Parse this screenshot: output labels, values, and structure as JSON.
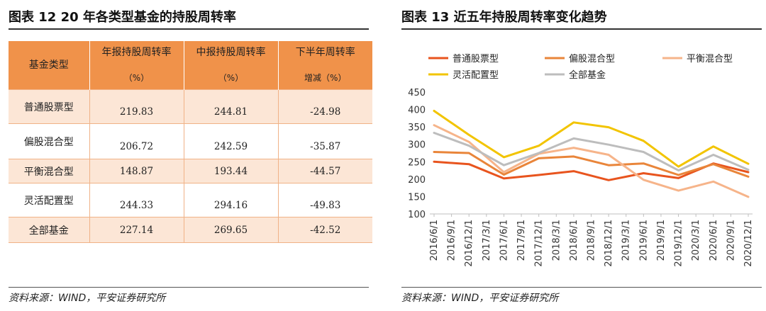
{
  "left_panel": {
    "title": "图表 12   20 年各类型基金的持股周转率",
    "source": "资料来源：WIND，平安证券研究所",
    "table": {
      "headers": [
        {
          "line1": "基金类型",
          "line2": ""
        },
        {
          "line1": "年报持股周转率",
          "line2": "（%）"
        },
        {
          "line1": "中报持股周转率",
          "line2": "（%）"
        },
        {
          "line1": "下半年周转率",
          "line2": "增减（%）"
        }
      ],
      "rows": [
        {
          "name": "普通股票型",
          "annual": "219.83",
          "interim": "244.81",
          "change": "-24.98"
        },
        {
          "name": "偏股混合型",
          "annual": "206.72",
          "interim": "242.59",
          "change": "-35.87"
        },
        {
          "name": "平衡混合型",
          "annual": "148.87",
          "interim": "193.44",
          "change": "-44.57"
        },
        {
          "name": "灵活配置型",
          "annual": "244.33",
          "interim": "294.16",
          "change": "-49.83"
        },
        {
          "name": "全部基金",
          "annual": "227.14",
          "interim": "269.65",
          "change": "-42.52"
        }
      ]
    }
  },
  "right_panel": {
    "title": "图表 13   近五年持股周转率变化趋势",
    "source": "资料来源：WIND，平安证券研究所"
  },
  "chart_data": {
    "type": "line",
    "title": "近五年持股周转率变化趋势",
    "xlabel": "",
    "ylabel": "",
    "ylim": [
      100,
      450
    ],
    "yticks": [
      100,
      150,
      200,
      250,
      300,
      350,
      400,
      450
    ],
    "grid": false,
    "legend_position": "top",
    "categories": [
      "2016/6/1",
      "2016/9/1",
      "2016/12/1",
      "2017/3/1",
      "2017/6/1",
      "2017/9/1",
      "2017/12/1",
      "2018/3/1",
      "2018/6/1",
      "2018/9/1",
      "2018/12/1",
      "2019/3/1",
      "2019/6/1",
      "2019/9/1",
      "2019/12/1",
      "2020/3/1",
      "2020/6/1",
      "2020/9/1",
      "2020/12/1"
    ],
    "series": [
      {
        "name": "普通股票型",
        "color": "#E8541E",
        "points": [
          {
            "x": "2016/6/1",
            "y": 250
          },
          {
            "x": "2016/12/1",
            "y": 243
          },
          {
            "x": "2017/6/1",
            "y": 202
          },
          {
            "x": "2017/12/1",
            "y": 212
          },
          {
            "x": "2018/6/1",
            "y": 223
          },
          {
            "x": "2018/12/1",
            "y": 197
          },
          {
            "x": "2019/6/1",
            "y": 217
          },
          {
            "x": "2019/12/1",
            "y": 203
          },
          {
            "x": "2020/6/1",
            "y": 245
          },
          {
            "x": "2020/12/1",
            "y": 220
          }
        ]
      },
      {
        "name": "偏股混合型",
        "color": "#E9853A",
        "points": [
          {
            "x": "2016/6/1",
            "y": 278
          },
          {
            "x": "2016/12/1",
            "y": 275
          },
          {
            "x": "2017/6/1",
            "y": 213
          },
          {
            "x": "2017/12/1",
            "y": 260
          },
          {
            "x": "2018/6/1",
            "y": 265
          },
          {
            "x": "2018/12/1",
            "y": 240
          },
          {
            "x": "2019/6/1",
            "y": 245
          },
          {
            "x": "2019/12/1",
            "y": 212
          },
          {
            "x": "2020/6/1",
            "y": 243
          },
          {
            "x": "2020/12/1",
            "y": 207
          }
        ]
      },
      {
        "name": "平衡混合型",
        "color": "#F6B48A",
        "points": [
          {
            "x": "2016/6/1",
            "y": 355
          },
          {
            "x": "2016/12/1",
            "y": 307
          },
          {
            "x": "2017/6/1",
            "y": 220
          },
          {
            "x": "2017/12/1",
            "y": 273
          },
          {
            "x": "2018/6/1",
            "y": 290
          },
          {
            "x": "2018/12/1",
            "y": 270
          },
          {
            "x": "2019/6/1",
            "y": 198
          },
          {
            "x": "2019/12/1",
            "y": 167
          },
          {
            "x": "2020/6/1",
            "y": 193
          },
          {
            "x": "2020/12/1",
            "y": 149
          }
        ]
      },
      {
        "name": "灵活配置型",
        "color": "#F2C400",
        "points": [
          {
            "x": "2016/6/1",
            "y": 396
          },
          {
            "x": "2016/12/1",
            "y": 327
          },
          {
            "x": "2017/6/1",
            "y": 263
          },
          {
            "x": "2017/12/1",
            "y": 296
          },
          {
            "x": "2018/6/1",
            "y": 363
          },
          {
            "x": "2018/12/1",
            "y": 349
          },
          {
            "x": "2019/6/1",
            "y": 310
          },
          {
            "x": "2019/12/1",
            "y": 236
          },
          {
            "x": "2020/6/1",
            "y": 294
          },
          {
            "x": "2020/12/1",
            "y": 244
          }
        ]
      },
      {
        "name": "全部基金",
        "color": "#BDBDBD",
        "points": [
          {
            "x": "2016/6/1",
            "y": 333
          },
          {
            "x": "2016/12/1",
            "y": 296
          },
          {
            "x": "2017/6/1",
            "y": 240
          },
          {
            "x": "2017/12/1",
            "y": 275
          },
          {
            "x": "2018/6/1",
            "y": 317
          },
          {
            "x": "2018/12/1",
            "y": 299
          },
          {
            "x": "2019/6/1",
            "y": 278
          },
          {
            "x": "2019/12/1",
            "y": 225
          },
          {
            "x": "2020/6/1",
            "y": 270
          },
          {
            "x": "2020/12/1",
            "y": 227
          }
        ]
      }
    ]
  }
}
